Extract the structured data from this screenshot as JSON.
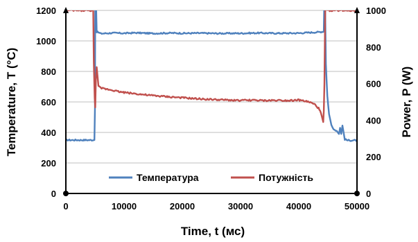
{
  "chart_data": {
    "type": "line",
    "xlabel": "Time, t (мс)",
    "ylabel_left": "Temperature, T (°C)",
    "ylabel_right": "Power, P (W)",
    "xlim": [
      0,
      50000
    ],
    "ylim_left": [
      0,
      1200
    ],
    "ylim_right": [
      0,
      1000
    ],
    "x_ticks": [
      "0",
      "10000",
      "20000",
      "30000",
      "40000",
      "50000"
    ],
    "y_left_ticks": [
      "0",
      "200",
      "400",
      "600",
      "800",
      "1000",
      "1200"
    ],
    "y_right_ticks": [
      "0",
      "200",
      "400",
      "600",
      "800",
      "1000"
    ],
    "grid": "horizontal",
    "legend_position": "bottom-center",
    "series": [
      {
        "name": "Температура",
        "axis": "left",
        "color": "#4F81BD",
        "points": [
          [
            0,
            350
          ],
          [
            4900,
            350
          ],
          [
            5000,
            560
          ],
          [
            5050,
            1300
          ],
          [
            5150,
            1300
          ],
          [
            5300,
            1060
          ],
          [
            6000,
            1048
          ],
          [
            8000,
            1052
          ],
          [
            10000,
            1050
          ],
          [
            12000,
            1053
          ],
          [
            15000,
            1049
          ],
          [
            18000,
            1052
          ],
          [
            20000,
            1050
          ],
          [
            23000,
            1051
          ],
          [
            26000,
            1049
          ],
          [
            30000,
            1050
          ],
          [
            33000,
            1052
          ],
          [
            36000,
            1050
          ],
          [
            40000,
            1051
          ],
          [
            42000,
            1055
          ],
          [
            43500,
            1058
          ],
          [
            44300,
            1062
          ],
          [
            44400,
            1300
          ],
          [
            44500,
            1300
          ],
          [
            44650,
            850
          ],
          [
            44900,
            640
          ],
          [
            45200,
            520
          ],
          [
            45600,
            450
          ],
          [
            46000,
            420
          ],
          [
            46500,
            410
          ],
          [
            46900,
            390
          ],
          [
            47100,
            430
          ],
          [
            47300,
            390
          ],
          [
            47500,
            445
          ],
          [
            47700,
            400
          ],
          [
            47900,
            355
          ],
          [
            48400,
            348
          ],
          [
            50000,
            348
          ]
        ]
      },
      {
        "name": "Потужність",
        "axis": "right",
        "color": "#C0504D",
        "points": [
          [
            0,
            1000
          ],
          [
            4600,
            1000
          ],
          [
            4700,
            1000
          ],
          [
            4800,
            720
          ],
          [
            4950,
            520
          ],
          [
            5050,
            470
          ],
          [
            5150,
            620
          ],
          [
            5300,
            690
          ],
          [
            5600,
            585
          ],
          [
            6000,
            575
          ],
          [
            7000,
            570
          ],
          [
            8000,
            565
          ],
          [
            9000,
            557
          ],
          [
            10000,
            552
          ],
          [
            12000,
            545
          ],
          [
            14000,
            537
          ],
          [
            16000,
            532
          ],
          [
            18000,
            527
          ],
          [
            20000,
            523
          ],
          [
            22000,
            518
          ],
          [
            24000,
            515
          ],
          [
            26000,
            512
          ],
          [
            28000,
            510
          ],
          [
            30000,
            508
          ],
          [
            32000,
            510
          ],
          [
            34000,
            507
          ],
          [
            36000,
            509
          ],
          [
            38000,
            508
          ],
          [
            40000,
            510
          ],
          [
            41000,
            505
          ],
          [
            42000,
            497
          ],
          [
            42800,
            485
          ],
          [
            43400,
            465
          ],
          [
            43800,
            440
          ],
          [
            44050,
            410
          ],
          [
            44200,
            390
          ],
          [
            44300,
            450
          ],
          [
            44400,
            600
          ],
          [
            44500,
            900
          ],
          [
            44550,
            1000
          ],
          [
            50000,
            1000
          ]
        ]
      }
    ]
  }
}
